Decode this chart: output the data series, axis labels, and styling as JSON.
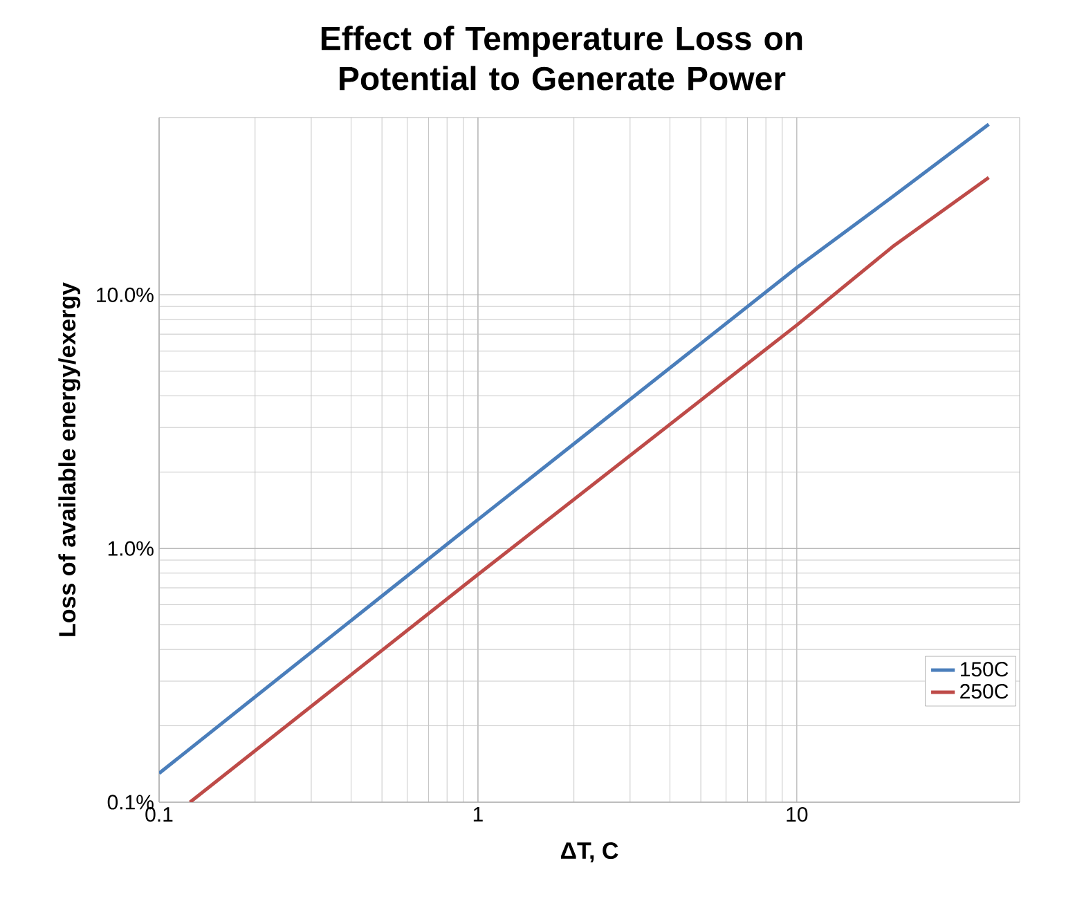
{
  "chart_data": {
    "type": "line",
    "title": "Effect of Temperature Loss on Potential to Generate Power",
    "xlabel": "ΔT, C",
    "ylabel": "Loss of available energy/exergy",
    "log": "xy",
    "grid": true,
    "legend": "bottom right",
    "marker": "none",
    "line_style": "solid",
    "xlim": [
      0.1,
      50
    ],
    "xticks": [
      0.1,
      1,
      10
    ],
    "ylim": [
      0.1,
      50
    ],
    "yticks": [
      {
        "value": 0.1,
        "label": "0.1%"
      },
      {
        "value": 1,
        "label": "1.0%"
      },
      {
        "value": 10,
        "label": "10.0%"
      }
    ],
    "series": [
      {
        "name": "150C",
        "color": "#4a7ebb",
        "x": [
          0.1,
          1,
          10,
          20,
          40
        ],
        "values": [
          0.13,
          1.3,
          12.8,
          24.4,
          47
        ]
      },
      {
        "name": "250C",
        "color": "#be4b48",
        "x": [
          0.125,
          1,
          10,
          20,
          40
        ],
        "values": [
          0.1,
          0.79,
          7.6,
          15.5,
          29
        ]
      }
    ]
  }
}
